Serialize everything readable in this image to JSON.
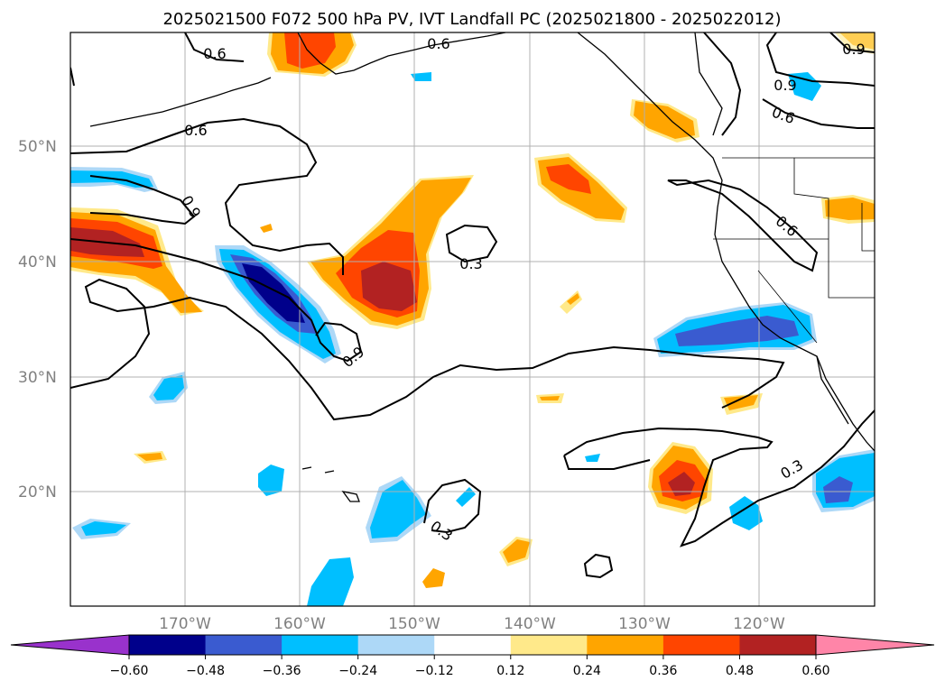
{
  "title": "2025021500 F072 500 hPa PV, IVT Landfall PC (2025021800 - 2025022012)",
  "latitudes": [
    "50°N",
    "40°N",
    "30°N",
    "20°N"
  ],
  "longitudes": [
    "170°W",
    "160°W",
    "150°W",
    "140°W",
    "130°W",
    "120°W"
  ],
  "contour_labels": [
    "0.6",
    "0.6",
    "0.6",
    "0.9",
    "0.9",
    "0.6",
    "0.9",
    "0.6",
    "0.3",
    "0.9",
    "0.3",
    "0.3"
  ],
  "colorbar": {
    "ticks": [
      "−0.60",
      "−0.48",
      "−0.36",
      "−0.24",
      "−0.12",
      "0.12",
      "0.24",
      "0.36",
      "0.48",
      "0.60"
    ],
    "colors": [
      "#9932cc",
      "#00008b",
      "#3a5bd0",
      "#00bfff",
      "#add8f7",
      "#ffffff",
      "#ffe98a",
      "#ffa500",
      "#ff4500",
      "#b22222",
      "#ff85a8"
    ]
  },
  "colors": {
    "neg_strong": "#00008b",
    "neg_mid": "#3a5bd0",
    "neg_light": "#00bfff",
    "neg_faint": "#add8f7",
    "pos_faint": "#ffe98a",
    "pos_light": "#ffa500",
    "pos_mid": "#ff4500",
    "pos_strong": "#b22222"
  }
}
